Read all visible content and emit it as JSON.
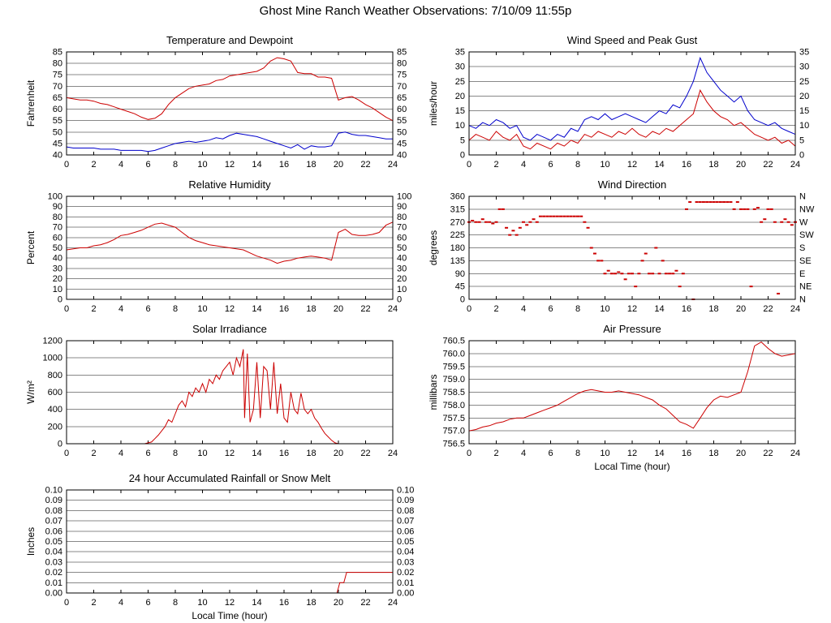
{
  "page_title": "Ghost Mine Ranch Weather Observations: 7/10/09 11:55p",
  "chart_data": [
    {
      "id": "temperature-dewpoint",
      "type": "line",
      "title": "Temperature and Dewpoint",
      "ylabel": "Fahrenheit",
      "xlabel": "",
      "ylim": [
        40,
        85
      ],
      "ytick_step": 5,
      "ytick_decimals": 0,
      "right_ticks": true,
      "xlim": [
        0,
        24
      ],
      "xtick_step": 2,
      "grid": "horizontal",
      "series": [
        {
          "name": "temperature",
          "color": "#cc0000",
          "type": "line",
          "x0": 0,
          "dx": 0.5,
          "y": [
            65,
            64.5,
            64,
            64,
            63.5,
            62.5,
            62,
            61,
            60,
            59,
            58,
            56.5,
            55.5,
            56,
            58,
            62,
            65,
            67,
            69,
            70,
            70.5,
            71,
            72.5,
            73,
            74.5,
            75,
            75.5,
            76,
            76.5,
            78,
            81,
            82.5,
            82,
            81,
            76,
            75.5,
            75.5,
            74,
            74,
            73.5,
            64,
            65,
            65.5,
            64,
            62,
            60.5,
            58.5,
            56.5,
            55
          ]
        },
        {
          "name": "dewpoint",
          "color": "#0000cc",
          "type": "line",
          "x0": 0,
          "dx": 0.5,
          "y": [
            43.5,
            43,
            43,
            43,
            43,
            42.5,
            42.5,
            42.5,
            42,
            42,
            42,
            42,
            41.5,
            42,
            43,
            44,
            45,
            45.5,
            46,
            45.5,
            46,
            46.5,
            47.5,
            47,
            48.5,
            49.5,
            49,
            48.5,
            48,
            47,
            46,
            45,
            44,
            43,
            44.5,
            42.5,
            44,
            43.5,
            43.5,
            44,
            49.5,
            50,
            49,
            48.5,
            48.5,
            48,
            47.5,
            47,
            47
          ]
        }
      ]
    },
    {
      "id": "wind-speed-gust",
      "type": "line",
      "title": "Wind Speed and Peak Gust",
      "ylabel": "miles/hour",
      "xlabel": "",
      "ylim": [
        0,
        35
      ],
      "ytick_step": 5,
      "ytick_decimals": 0,
      "right_ticks": true,
      "xlim": [
        0,
        24
      ],
      "xtick_step": 2,
      "grid": "horizontal",
      "series": [
        {
          "name": "peak-gust",
          "color": "#0000cc",
          "type": "line",
          "x0": 0,
          "dx": 0.5,
          "y": [
            10,
            9,
            11,
            10,
            12,
            11,
            9,
            10,
            6,
            5,
            7,
            6,
            5,
            7,
            6,
            9,
            8,
            12,
            13,
            12,
            14,
            12,
            13,
            14,
            13,
            12,
            11,
            13,
            15,
            14,
            17,
            16,
            20,
            25,
            33,
            28,
            25,
            22,
            20,
            18,
            20,
            15,
            12,
            11,
            10,
            11,
            9,
            8,
            7
          ]
        },
        {
          "name": "wind-speed",
          "color": "#cc0000",
          "type": "line",
          "x0": 0,
          "dx": 0.5,
          "y": [
            5,
            7,
            6,
            5,
            8,
            6,
            5,
            7,
            3,
            2,
            4,
            3,
            2,
            4,
            3,
            5,
            4,
            7,
            6,
            8,
            7,
            6,
            8,
            7,
            9,
            7,
            6,
            8,
            7,
            9,
            8,
            10,
            12,
            14,
            22,
            18,
            15,
            13,
            12,
            10,
            11,
            9,
            7,
            6,
            5,
            6,
            4,
            5,
            3
          ]
        }
      ]
    },
    {
      "id": "relative-humidity",
      "type": "line",
      "title": "Relative Humidity",
      "ylabel": "Percent",
      "xlabel": "",
      "ylim": [
        0,
        100
      ],
      "ytick_step": 10,
      "ytick_decimals": 0,
      "right_ticks": true,
      "xlim": [
        0,
        24
      ],
      "xtick_step": 2,
      "grid": "horizontal",
      "series": [
        {
          "name": "humidity",
          "color": "#cc0000",
          "type": "line",
          "x0": 0,
          "dx": 0.5,
          "y": [
            48,
            49,
            50,
            50,
            52,
            53,
            55,
            58,
            62,
            63,
            65,
            67,
            70,
            73,
            74,
            72,
            70,
            65,
            60,
            57,
            55,
            53,
            52,
            51,
            50,
            49,
            48,
            45,
            42,
            40,
            38,
            35,
            37,
            38,
            40,
            41,
            42,
            41,
            40,
            38,
            65,
            68,
            63,
            62,
            62,
            63,
            65,
            72,
            75
          ]
        }
      ]
    },
    {
      "id": "wind-direction",
      "type": "scatter",
      "title": "Wind Direction",
      "ylabel": "degrees",
      "xlabel": "",
      "ylim": [
        0,
        360
      ],
      "ytick_step": 45,
      "ytick_decimals": 0,
      "right_labels": [
        "N",
        "NE",
        "E",
        "SE",
        "S",
        "SW",
        "W",
        "NW",
        "N"
      ],
      "xlim": [
        0,
        24
      ],
      "xtick_step": 2,
      "grid": "horizontal",
      "series": [
        {
          "name": "direction",
          "color": "#cc0000",
          "type": "scatter",
          "x0": 0,
          "dx": 0.25,
          "y": [
            270,
            275,
            270,
            270,
            280,
            270,
            270,
            265,
            270,
            315,
            315,
            250,
            225,
            240,
            225,
            250,
            270,
            260,
            270,
            280,
            270,
            290,
            290,
            290,
            290,
            290,
            290,
            290,
            290,
            290,
            290,
            290,
            290,
            290,
            270,
            250,
            180,
            160,
            135,
            135,
            90,
            100,
            90,
            90,
            95,
            90,
            70,
            90,
            90,
            45,
            90,
            135,
            160,
            90,
            90,
            180,
            90,
            135,
            90,
            90,
            90,
            100,
            45,
            90,
            315,
            340,
            0,
            340,
            340,
            340,
            340,
            340,
            340,
            340,
            340,
            340,
            340,
            340,
            315,
            340,
            315,
            315,
            315,
            45,
            315,
            320,
            270,
            280,
            315,
            315,
            270,
            20,
            270,
            280,
            270,
            260,
            270
          ]
        }
      ]
    },
    {
      "id": "solar-irradiance",
      "type": "line",
      "title": "Solar Irradiance",
      "ylabel": "W/m²",
      "xlabel": "",
      "ylim": [
        0,
        1200
      ],
      "ytick_step": 200,
      "ytick_decimals": 0,
      "xlim": [
        0,
        24
      ],
      "xtick_step": 2,
      "grid": "horizontal",
      "series": [
        {
          "name": "irradiance",
          "color": "#cc0000",
          "type": "line",
          "x": [
            0,
            1,
            2,
            3,
            4,
            5,
            5.75,
            6,
            6.25,
            6.5,
            6.75,
            7,
            7.25,
            7.5,
            7.75,
            8,
            8.25,
            8.5,
            8.75,
            9,
            9.25,
            9.5,
            9.75,
            10,
            10.25,
            10.5,
            10.75,
            11,
            11.25,
            11.5,
            11.75,
            12,
            12.25,
            12.5,
            12.75,
            13,
            13.1,
            13.3,
            13.5,
            13.75,
            14,
            14.25,
            14.5,
            14.75,
            15,
            15.25,
            15.5,
            15.75,
            16,
            16.25,
            16.5,
            16.75,
            17,
            17.25,
            17.5,
            17.75,
            18,
            18.25,
            18.5,
            18.75,
            19,
            19.25,
            19.5,
            19.75,
            20,
            20.25,
            21,
            22,
            23,
            24
          ],
          "y": [
            0,
            0,
            0,
            0,
            0,
            0,
            0,
            10,
            20,
            60,
            100,
            150,
            200,
            280,
            250,
            350,
            450,
            500,
            430,
            600,
            550,
            650,
            600,
            700,
            600,
            750,
            700,
            800,
            750,
            850,
            900,
            950,
            800,
            1000,
            900,
            1100,
            300,
            1050,
            250,
            400,
            950,
            300,
            900,
            850,
            400,
            950,
            350,
            700,
            300,
            250,
            600,
            400,
            350,
            590,
            400,
            350,
            400,
            300,
            250,
            180,
            120,
            80,
            40,
            10,
            0,
            0,
            0,
            0,
            0,
            0
          ]
        }
      ]
    },
    {
      "id": "air-pressure",
      "type": "line",
      "title": "Air Pressure",
      "ylabel": "millibars",
      "xlabel": "Local Time (hour)",
      "ylim": [
        756.5,
        760.5
      ],
      "ytick_step": 0.5,
      "ytick_decimals": 1,
      "xlim": [
        0,
        24
      ],
      "xtick_step": 2,
      "grid": "horizontal",
      "series": [
        {
          "name": "pressure",
          "color": "#cc0000",
          "type": "line",
          "x0": 0,
          "dx": 0.5,
          "y": [
            757.0,
            757.05,
            757.15,
            757.2,
            757.3,
            757.35,
            757.45,
            757.5,
            757.5,
            757.6,
            757.7,
            757.8,
            757.9,
            758.0,
            758.15,
            758.3,
            758.45,
            758.55,
            758.6,
            758.55,
            758.5,
            758.5,
            758.55,
            758.5,
            758.45,
            758.4,
            758.3,
            758.2,
            758.0,
            757.85,
            757.6,
            757.35,
            757.25,
            757.1,
            757.5,
            757.9,
            758.2,
            758.35,
            758.3,
            758.4,
            758.5,
            759.3,
            760.3,
            760.45,
            760.2,
            760.0,
            759.9,
            759.95,
            760.0
          ]
        }
      ]
    },
    {
      "id": "rainfall",
      "type": "line",
      "title": "24 hour Accumulated Rainfall or Snow Melt",
      "ylabel": "Inches",
      "xlabel": "Local Time (hour)",
      "ylim": [
        0,
        0.1
      ],
      "ytick_step": 0.01,
      "ytick_decimals": 2,
      "right_ticks": true,
      "xlim": [
        0,
        24
      ],
      "xtick_step": 2,
      "grid": "horizontal",
      "series": [
        {
          "name": "rainfall",
          "color": "#cc0000",
          "type": "line",
          "x": [
            0,
            19.9,
            20.1,
            20.4,
            20.6,
            24
          ],
          "y": [
            0,
            0,
            0.01,
            0.01,
            0.02,
            0.02
          ]
        }
      ]
    }
  ]
}
